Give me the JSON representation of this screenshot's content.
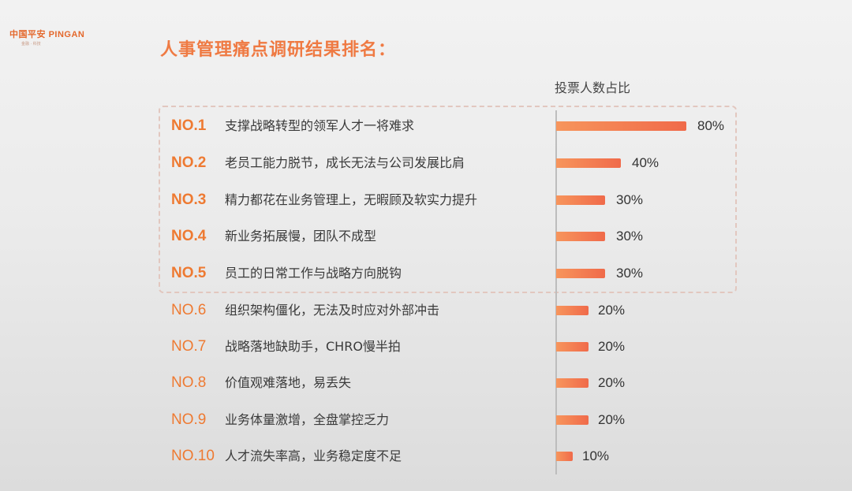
{
  "logo": {
    "chinese": "中国平安",
    "english": "PINGAN",
    "tagline": "金融 · 科技"
  },
  "title": "人事管理痛点调研结果排名：",
  "chart_header": "投票人数占比",
  "colors": {
    "accent": "#ee7a32",
    "title": "#ef7a43",
    "bar_start": "#f7955c",
    "bar_end": "#f06a4a",
    "highlight_border": "#e2c7bf"
  },
  "items": [
    {
      "rank": "NO.1",
      "label": "支撑战略转型的领军人才一将难求",
      "value": 80,
      "value_label": "80%",
      "highlighted": true
    },
    {
      "rank": "NO.2",
      "label": "老员工能力脱节，成长无法与公司发展比肩",
      "value": 40,
      "value_label": "40%",
      "highlighted": true
    },
    {
      "rank": "NO.3",
      "label": "精力都花在业务管理上，无暇顾及软实力提升",
      "value": 30,
      "value_label": "30%",
      "highlighted": true
    },
    {
      "rank": "NO.4",
      "label": "新业务拓展慢，团队不成型",
      "value": 30,
      "value_label": "30%",
      "highlighted": true
    },
    {
      "rank": "NO.5",
      "label": "员工的日常工作与战略方向脱钩",
      "value": 30,
      "value_label": "30%",
      "highlighted": true
    },
    {
      "rank": "NO.6",
      "label": "组织架构僵化，无法及时应对外部冲击",
      "value": 20,
      "value_label": "20%",
      "highlighted": false
    },
    {
      "rank": "NO.7",
      "label": "战略落地缺助手，CHRO慢半拍",
      "value": 20,
      "value_label": "20%",
      "highlighted": false
    },
    {
      "rank": "NO.8",
      "label": "价值观难落地，易丢失",
      "value": 20,
      "value_label": "20%",
      "highlighted": false
    },
    {
      "rank": "NO.9",
      "label": "业务体量激增，全盘掌控乏力",
      "value": 20,
      "value_label": "20%",
      "highlighted": false
    },
    {
      "rank": "NO.10",
      "label": "人才流失率高，业务稳定度不足",
      "value": 10,
      "value_label": "10%",
      "highlighted": false
    }
  ],
  "chart_data": {
    "type": "bar",
    "orientation": "horizontal",
    "title": "人事管理痛点调研结果排名：",
    "xlabel": "投票人数占比",
    "ylabel": "",
    "categories": [
      "NO.1 支撑战略转型的领军人才一将难求",
      "NO.2 老员工能力脱节，成长无法与公司发展比肩",
      "NO.3 精力都花在业务管理上，无暇顾及软实力提升",
      "NO.4 新业务拓展慢，团队不成型",
      "NO.5 员工的日常工作与战略方向脱钩",
      "NO.6 组织架构僵化，无法及时应对外部冲击",
      "NO.7 战略落地缺助手，CHRO慢半拍",
      "NO.8 价值观难落地，易丢失",
      "NO.9 业务体量激增，全盘掌控乏力",
      "NO.10 人才流失率高，业务稳定度不足"
    ],
    "values": [
      80,
      40,
      30,
      30,
      30,
      20,
      20,
      20,
      20,
      10
    ],
    "value_labels": [
      "80%",
      "40%",
      "30%",
      "30%",
      "30%",
      "20%",
      "20%",
      "20%",
      "20%",
      "10%"
    ],
    "unit": "%",
    "xlim": [
      0,
      100
    ],
    "grid": false,
    "legend": "none",
    "annotations": [
      "Top 5 items enclosed in dashed highlight box"
    ]
  }
}
